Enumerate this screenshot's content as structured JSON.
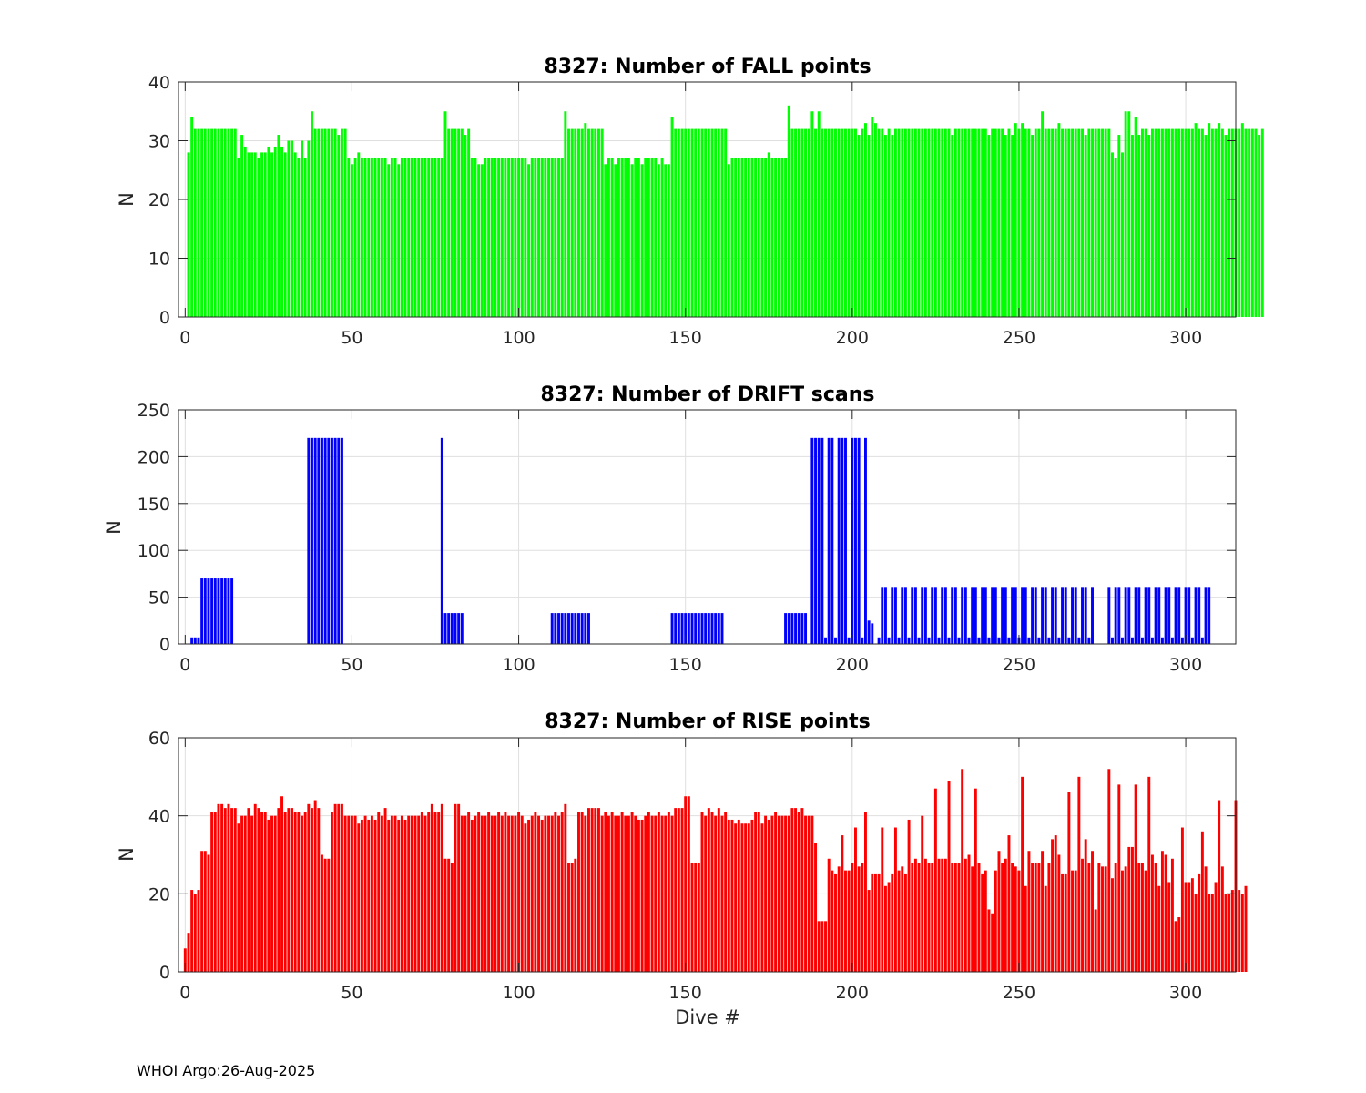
{
  "footer": "WHOI Argo:26-Aug-2025",
  "chart_data": [
    {
      "type": "bar",
      "title": "8327: Number of FALL points",
      "xlabel": "",
      "ylabel": "N",
      "color": "#00ff00",
      "xlim": [
        -2,
        315
      ],
      "ylim": [
        0,
        40
      ],
      "xticks": [
        0,
        50,
        100,
        150,
        200,
        250,
        300
      ],
      "yticks": [
        0,
        10,
        20,
        30,
        40
      ],
      "grid": true,
      "x_start": 1,
      "values": [
        28,
        34,
        32,
        32,
        32,
        32,
        32,
        32,
        32,
        32,
        32,
        32,
        32,
        32,
        32,
        27,
        31,
        29,
        28,
        28,
        28,
        27,
        28,
        28,
        29,
        28,
        29,
        31,
        29,
        28,
        30,
        30,
        28,
        27,
        30,
        27,
        30,
        35,
        32,
        32,
        32,
        32,
        32,
        32,
        32,
        31,
        32,
        32,
        27,
        26,
        27,
        28,
        27,
        27,
        27,
        27,
        27,
        27,
        27,
        27,
        26,
        27,
        27,
        26,
        27,
        27,
        27,
        27,
        27,
        27,
        27,
        27,
        27,
        27,
        27,
        27,
        27,
        35,
        32,
        32,
        32,
        32,
        32,
        31,
        32,
        27,
        27,
        26,
        26,
        27,
        27,
        27,
        27,
        27,
        27,
        27,
        27,
        27,
        27,
        27,
        27,
        27,
        26,
        27,
        27,
        27,
        27,
        27,
        27,
        27,
        27,
        27,
        27,
        35,
        32,
        32,
        32,
        32,
        32,
        33,
        32,
        32,
        32,
        32,
        32,
        26,
        27,
        27,
        26,
        27,
        27,
        27,
        27,
        26,
        27,
        27,
        26,
        27,
        27,
        27,
        27,
        26,
        27,
        26,
        26,
        34,
        32,
        32,
        32,
        32,
        32,
        32,
        32,
        32,
        32,
        32,
        32,
        32,
        32,
        32,
        32,
        32,
        26,
        27,
        27,
        27,
        27,
        27,
        27,
        27,
        27,
        27,
        27,
        27,
        28,
        27,
        27,
        27,
        27,
        27,
        36,
        32,
        32,
        32,
        32,
        32,
        32,
        35,
        32,
        35,
        32,
        32,
        32,
        32,
        32,
        32,
        32,
        32,
        32,
        32,
        32,
        31,
        32,
        33,
        31,
        34,
        33,
        32,
        32,
        31,
        32,
        31,
        32,
        32,
        32,
        32,
        32,
        32,
        32,
        32,
        32,
        32,
        32,
        32,
        32,
        32,
        32,
        32,
        32,
        31,
        32,
        32,
        32,
        32,
        32,
        32,
        32,
        32,
        32,
        32,
        31,
        32,
        32,
        32,
        32,
        31,
        32,
        31,
        33,
        32,
        33,
        32,
        32,
        31,
        32,
        32,
        35,
        32,
        32,
        32,
        32,
        33,
        32,
        32,
        32,
        32,
        32,
        32,
        32,
        31,
        32,
        32,
        32,
        32,
        32,
        32,
        32,
        28,
        27,
        31,
        28,
        35,
        35,
        31,
        34,
        31,
        32,
        32,
        31,
        32,
        32,
        32,
        32,
        32,
        32,
        32,
        32,
        32,
        32,
        32,
        32,
        32,
        33,
        32,
        32,
        31,
        33,
        32,
        32,
        33,
        32,
        31,
        32,
        32,
        32,
        32,
        33,
        32,
        32,
        32,
        32,
        31,
        32
      ]
    },
    {
      "type": "bar",
      "title": "8327: Number of DRIFT scans",
      "xlabel": "",
      "ylabel": "N",
      "color": "#0000ff",
      "xlim": [
        -2,
        315
      ],
      "ylim": [
        0,
        250
      ],
      "xticks": [
        0,
        50,
        100,
        150,
        200,
        250,
        300
      ],
      "yticks": [
        0,
        50,
        100,
        150,
        200,
        250
      ],
      "grid": true,
      "x_start": 1,
      "values": [
        0,
        7,
        7,
        7,
        70,
        70,
        70,
        70,
        70,
        70,
        70,
        70,
        70,
        70,
        0,
        0,
        0,
        0,
        0,
        0,
        0,
        0,
        0,
        0,
        0,
        0,
        0,
        0,
        0,
        0,
        0,
        0,
        0,
        0,
        0,
        0,
        220,
        220,
        220,
        220,
        220,
        220,
        220,
        220,
        220,
        220,
        220,
        0,
        0,
        0,
        0,
        0,
        0,
        0,
        0,
        0,
        0,
        0,
        0,
        0,
        0,
        0,
        0,
        0,
        0,
        0,
        0,
        0,
        0,
        0,
        0,
        0,
        0,
        0,
        0,
        0,
        220,
        33,
        33,
        33,
        33,
        33,
        33,
        0,
        0,
        0,
        0,
        0,
        0,
        0,
        0,
        0,
        0,
        0,
        0,
        0,
        0,
        0,
        0,
        0,
        0,
        0,
        0,
        0,
        0,
        0,
        0,
        0,
        0,
        33,
        33,
        33,
        33,
        33,
        33,
        33,
        33,
        33,
        33,
        33,
        33,
        0,
        0,
        0,
        0,
        0,
        0,
        0,
        0,
        0,
        0,
        0,
        0,
        0,
        0,
        0,
        0,
        0,
        0,
        0,
        0,
        0,
        0,
        0,
        0,
        33,
        33,
        33,
        33,
        33,
        33,
        33,
        33,
        33,
        33,
        33,
        33,
        33,
        33,
        33,
        33,
        0,
        0,
        0,
        0,
        0,
        0,
        0,
        0,
        0,
        0,
        0,
        0,
        0,
        0,
        0,
        0,
        0,
        0,
        33,
        33,
        33,
        33,
        33,
        33,
        33,
        0,
        220,
        220,
        220,
        220,
        7,
        220,
        220,
        7,
        220,
        220,
        220,
        7,
        220,
        220,
        220,
        7,
        220,
        25,
        22,
        0,
        7,
        60,
        60,
        7,
        60,
        60,
        7,
        60,
        60,
        7,
        60,
        60,
        7,
        60,
        60,
        7,
        60,
        60,
        7,
        60,
        60,
        7,
        60,
        60,
        7,
        60,
        60,
        7,
        60,
        60,
        7,
        60,
        60,
        7,
        60,
        60,
        7,
        60,
        60,
        7,
        60,
        60,
        7,
        60,
        60,
        7,
        60,
        60,
        7,
        60,
        60,
        7,
        60,
        60,
        7,
        60,
        60,
        7,
        60,
        60,
        7,
        60,
        60,
        7,
        60,
        0,
        0,
        0,
        0,
        60,
        7,
        60,
        60,
        7,
        60,
        60,
        7,
        60,
        60,
        7,
        60,
        60,
        7,
        60,
        60,
        7,
        60,
        60,
        7,
        60,
        60,
        7,
        60,
        60,
        7,
        60,
        60,
        7,
        60,
        60
      ]
    },
    {
      "type": "bar",
      "title": "8327: Number of RISE points",
      "xlabel": "Dive #",
      "ylabel": "N",
      "color": "#ff0000",
      "xlim": [
        -2,
        315
      ],
      "ylim": [
        0,
        60
      ],
      "xticks": [
        0,
        50,
        100,
        150,
        200,
        250,
        300
      ],
      "yticks": [
        0,
        20,
        40,
        60
      ],
      "grid": true,
      "x_start": 0,
      "values": [
        6,
        10,
        21,
        20,
        21,
        31,
        31,
        30,
        41,
        41,
        43,
        43,
        42,
        43,
        42,
        42,
        38,
        40,
        40,
        42,
        40,
        43,
        42,
        41,
        41,
        39,
        40,
        40,
        42,
        45,
        41,
        42,
        42,
        41,
        41,
        40,
        41,
        43,
        42,
        44,
        42,
        30,
        29,
        29,
        41,
        43,
        43,
        43,
        40,
        40,
        40,
        40,
        38,
        39,
        40,
        39,
        40,
        39,
        41,
        40,
        42,
        39,
        40,
        40,
        39,
        40,
        39,
        40,
        40,
        40,
        40,
        41,
        40,
        41,
        43,
        41,
        41,
        43,
        29,
        29,
        28,
        43,
        43,
        40,
        40,
        41,
        39,
        40,
        41,
        40,
        40,
        41,
        40,
        40,
        41,
        40,
        41,
        40,
        40,
        40,
        41,
        40,
        38,
        39,
        40,
        41,
        40,
        39,
        40,
        40,
        40,
        41,
        40,
        41,
        43,
        28,
        28,
        29,
        41,
        41,
        40,
        42,
        42,
        42,
        42,
        40,
        41,
        40,
        41,
        40,
        40,
        41,
        40,
        40,
        41,
        40,
        39,
        39,
        40,
        41,
        40,
        40,
        41,
        40,
        40,
        41,
        40,
        42,
        42,
        42,
        45,
        45,
        28,
        28,
        28,
        41,
        40,
        42,
        41,
        40,
        42,
        40,
        41,
        39,
        39,
        38,
        39,
        38,
        38,
        38,
        39,
        41,
        41,
        38,
        40,
        39,
        40,
        41,
        40,
        40,
        40,
        40,
        42,
        42,
        41,
        42,
        40,
        40,
        40,
        33,
        13,
        13,
        13,
        29,
        26,
        25,
        27,
        35,
        26,
        26,
        28,
        37,
        27,
        28,
        41,
        21,
        25,
        25,
        25,
        37,
        22,
        23,
        25,
        37,
        26,
        27,
        25,
        39,
        28,
        29,
        28,
        40,
        29,
        28,
        28,
        47,
        29,
        29,
        29,
        49,
        28,
        28,
        28,
        52,
        29,
        30,
        27,
        47,
        28,
        25,
        26,
        16,
        15,
        26,
        31,
        28,
        29,
        35,
        28,
        27,
        26,
        50,
        22,
        31,
        28,
        28,
        28,
        31,
        22,
        28,
        34,
        35,
        30,
        25,
        25,
        46,
        26,
        26,
        50,
        29,
        34,
        28,
        31,
        16,
        28,
        27,
        27,
        52,
        24,
        28,
        48,
        26,
        27,
        32,
        32,
        48,
        28,
        28,
        26,
        50,
        30,
        28,
        22,
        31,
        30,
        23,
        29,
        13,
        14,
        37,
        23,
        23,
        24,
        20,
        25,
        36,
        27,
        20,
        20,
        23,
        44,
        27,
        20,
        20,
        21,
        44,
        21,
        20,
        22
      ]
    }
  ]
}
